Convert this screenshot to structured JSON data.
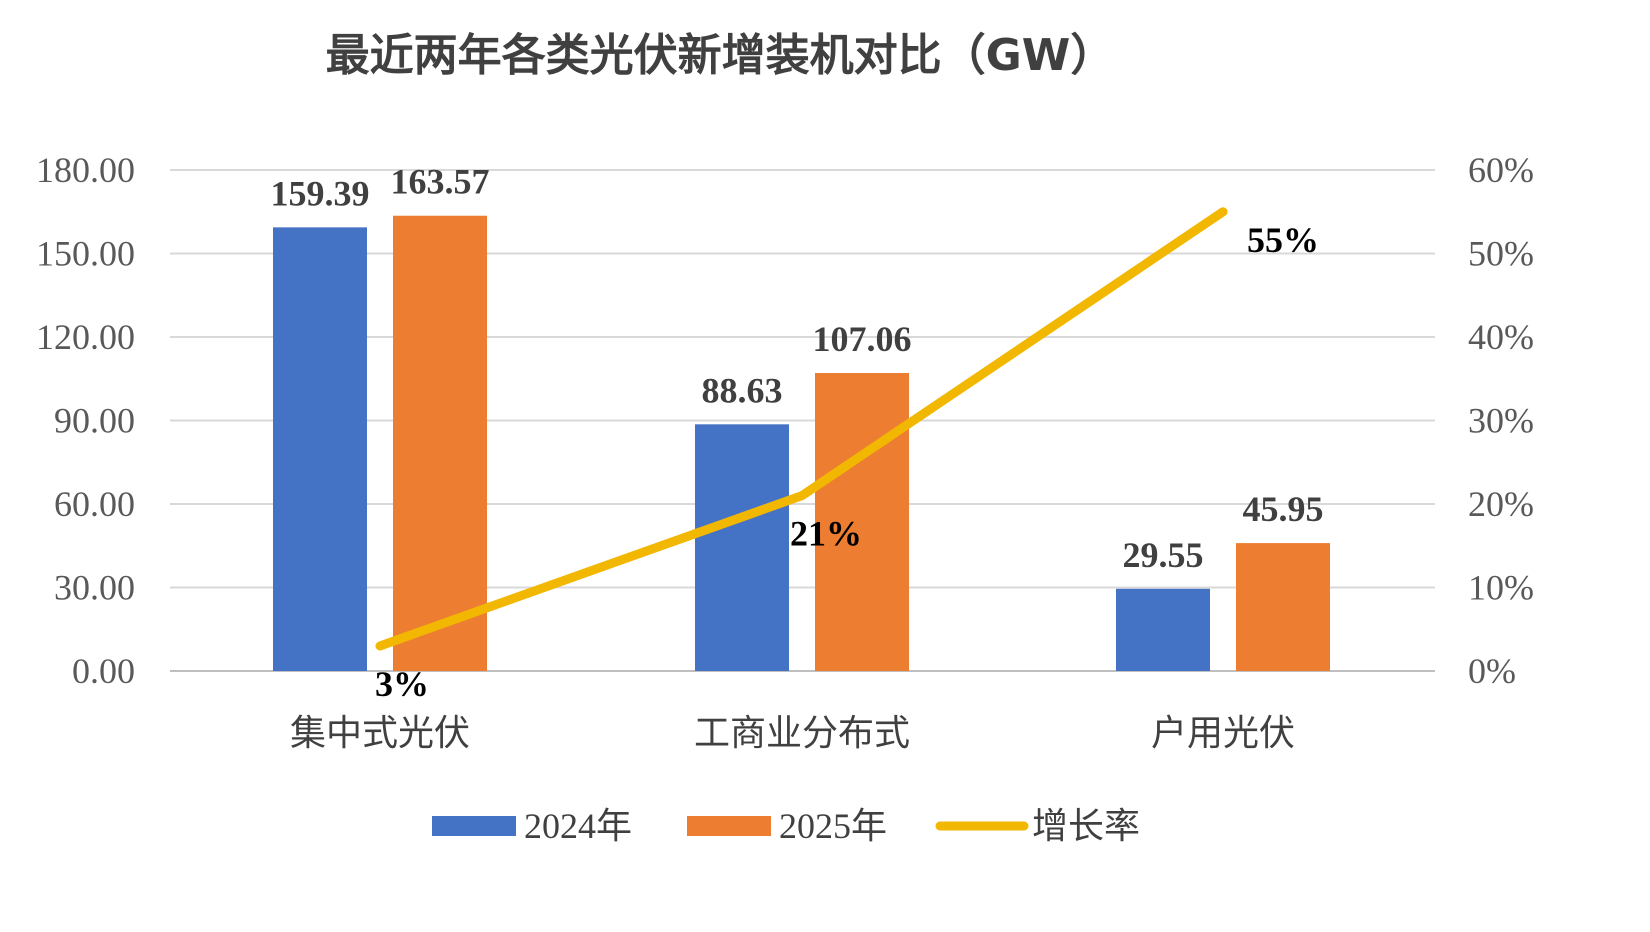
{
  "chart_data": {
    "type": "bar",
    "title": "最近两年各类光伏新增装机对比（GW）",
    "categories": [
      "集中式光伏",
      "工商业分布式",
      "户用光伏"
    ],
    "series": [
      {
        "name": "2024年",
        "type": "bar",
        "axis": "left",
        "color": "#4472C4",
        "values": [
          159.39,
          88.63,
          29.55
        ],
        "labels": [
          "159.39",
          "88.63",
          "29.55"
        ]
      },
      {
        "name": "2025年",
        "type": "bar",
        "axis": "left",
        "color": "#ED7D31",
        "values": [
          163.57,
          107.06,
          45.95
        ],
        "labels": [
          "163.57",
          "107.06",
          "45.95"
        ]
      },
      {
        "name": "增长率",
        "type": "line",
        "axis": "right",
        "color": "#F2B700",
        "values": [
          3,
          21,
          55
        ],
        "labels": [
          "3%",
          "21%",
          "55%"
        ]
      }
    ],
    "y_left": {
      "min": 0,
      "max": 180,
      "ticks": [
        "0.00",
        "30.00",
        "60.00",
        "90.00",
        "120.00",
        "150.00",
        "180.00"
      ]
    },
    "y_right": {
      "min": 0,
      "max": 60,
      "unit": "%",
      "ticks": [
        "0%",
        "10%",
        "20%",
        "30%",
        "40%",
        "50%",
        "60%"
      ]
    },
    "grid": true,
    "legend_position": "bottom"
  }
}
